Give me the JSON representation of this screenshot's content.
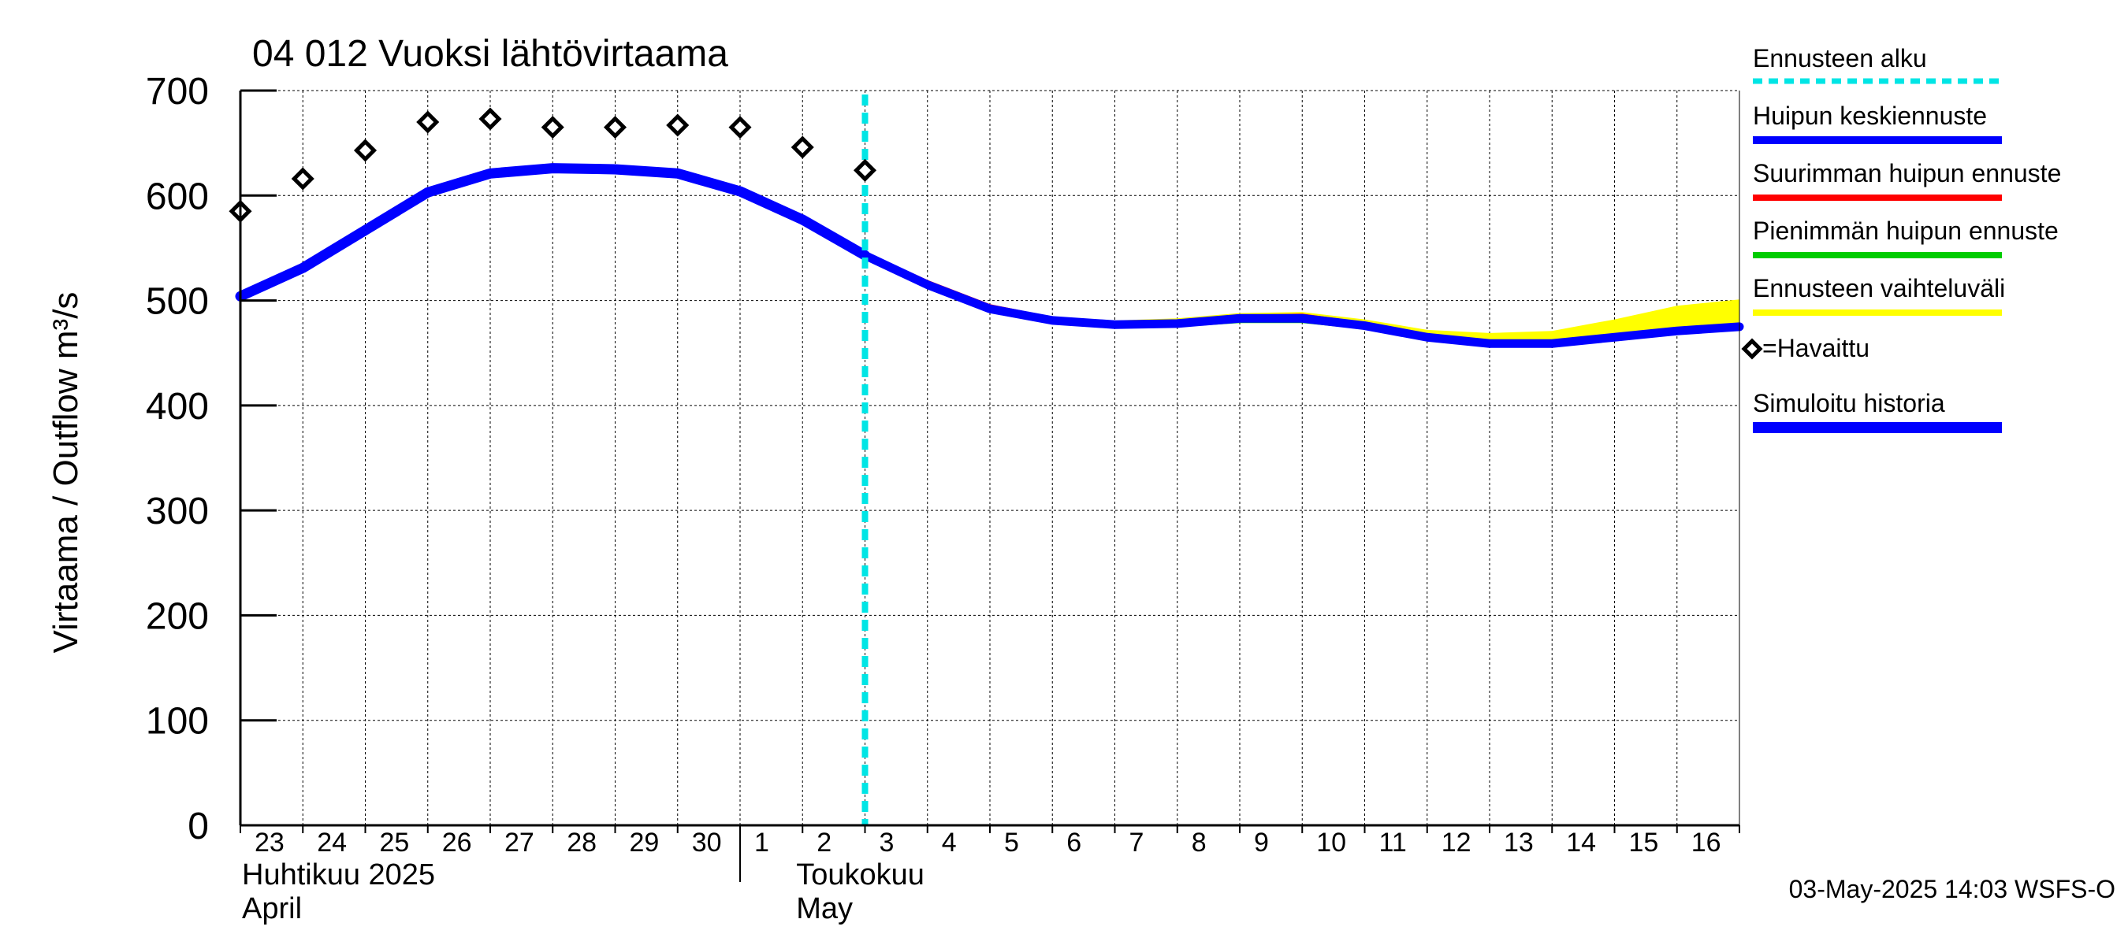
{
  "chart_data": {
    "type": "line",
    "title": "04 012 Vuoksi lähtövirtaama",
    "ylabel": "Virtaama / Outflow    m³/s",
    "ylim": [
      0,
      700
    ],
    "yticks": [
      0,
      100,
      200,
      300,
      400,
      500,
      600,
      700
    ],
    "day_range": [
      0,
      24
    ],
    "x_tick_labels": [
      "23",
      "24",
      "25",
      "26",
      "27",
      "28",
      "29",
      "30",
      "1",
      "2",
      "3",
      "4",
      "5",
      "6",
      "7",
      "8",
      "9",
      "10",
      "11",
      "12",
      "13",
      "14",
      "15",
      "16"
    ],
    "month_labels": [
      {
        "line1": "Huhtikuu  2025",
        "line2": "April"
      },
      {
        "line1": "Toukokuu",
        "line2": "May"
      }
    ],
    "forecast_start_day": 10,
    "series": [
      {
        "name": "Simuloitu historia",
        "color": "#0000ff",
        "x": [
          0,
          1,
          2,
          3,
          4,
          5,
          6,
          7,
          8,
          9,
          10
        ],
        "values": [
          504,
          531,
          567,
          603,
          621,
          626,
          625,
          621,
          604,
          577,
          543
        ]
      },
      {
        "name": "Huipun keskiennuste",
        "color": "#0000ff",
        "x": [
          10,
          11,
          12,
          13,
          14,
          15,
          16,
          17,
          18,
          19,
          20,
          21,
          22,
          23,
          24
        ],
        "values": [
          543,
          515,
          492,
          481,
          477,
          478,
          483,
          483,
          476,
          465,
          459,
          459,
          465,
          471,
          475
        ]
      },
      {
        "name": "Suurimman huipun ennuste",
        "color": "#ff0000",
        "x": [
          10,
          11,
          12,
          13,
          14,
          15,
          16,
          17,
          18,
          19,
          20,
          21,
          22,
          23,
          24
        ],
        "values": [
          545,
          518,
          495,
          483,
          479,
          480,
          485,
          486,
          478,
          467,
          461,
          461,
          467,
          473,
          477
        ]
      },
      {
        "name": "Pienimmän huipun ennuste",
        "color": "#00cc00",
        "x": [
          10,
          11,
          12,
          13,
          14,
          15,
          16,
          17,
          18,
          19,
          20,
          21,
          22,
          23,
          24
        ],
        "values": [
          541,
          513,
          490,
          479,
          475,
          476,
          480,
          480,
          474,
          463,
          457,
          457,
          463,
          469,
          473
        ]
      },
      {
        "name": "Havaittu",
        "color": "#000000",
        "x": [
          0,
          1,
          2,
          3,
          4,
          5,
          6,
          7,
          8,
          9,
          10
        ],
        "values": [
          585,
          616,
          643,
          670,
          673,
          665,
          665,
          667,
          665,
          646,
          624
        ]
      }
    ],
    "band": {
      "name": "Ennusteen vaihteluväli",
      "color": "#ffff00",
      "x": [
        10,
        11,
        12,
        13,
        14,
        15,
        16,
        17,
        18,
        19,
        20,
        21,
        22,
        23,
        24
      ],
      "low": [
        541,
        513,
        490,
        479,
        475,
        476,
        480,
        480,
        474,
        463,
        457,
        457,
        463,
        469,
        473
      ],
      "high": [
        546,
        519,
        496,
        484,
        481,
        483,
        488,
        489,
        482,
        472,
        469,
        471,
        482,
        495,
        501
      ]
    },
    "legend": [
      {
        "label": "Ennusteen alku",
        "color": "#00e5e5",
        "style": "dashed"
      },
      {
        "label": "Huipun keskiennuste",
        "color": "#0000ff",
        "style": "solid"
      },
      {
        "label": "Suurimman huipun ennuste",
        "color": "#ff0000",
        "style": "solid"
      },
      {
        "label": "Pienimmän huipun ennuste",
        "color": "#00cc00",
        "style": "solid"
      },
      {
        "label": "Ennusteen vaihteluväli",
        "color": "#ffff00",
        "style": "solid"
      },
      {
        "label": "=Havaittu",
        "color": "#000000",
        "style": "marker"
      },
      {
        "label": "Simuloitu historia",
        "color": "#0000ff",
        "style": "solid"
      }
    ],
    "footer": "03-May-2025 14:03 WSFS-O"
  }
}
